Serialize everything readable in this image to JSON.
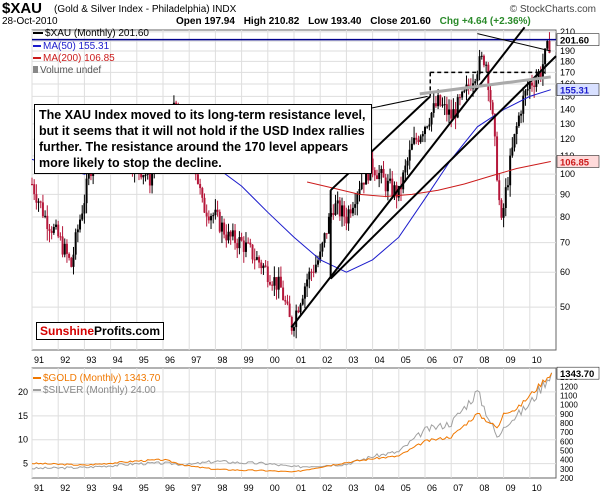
{
  "header": {
    "symbol": "$XAU",
    "subtitle": "(Gold & Silver Index - Philadelphia) INDX",
    "date": "28-Oct-2010",
    "open": "Open 197.94",
    "high": "High 210.82",
    "low": "Low 193.40",
    "close": "Close 201.60",
    "change": "Chg +4.64 (+2.36%)",
    "brand": "© StockCharts.com"
  },
  "legend_main": {
    "xau": "$XAU (Monthly) 201.60",
    "ma50": "MA(50) 155.31",
    "ma200": "MA(200) 106.85",
    "volume": "Volume undef"
  },
  "legend_lower": {
    "gold": "$GOLD (Monthly) 1343.70",
    "silver": "$SILVER (Monthly) 24.00"
  },
  "annotation": "The XAU Index moved to its long-term resistance level, but it seems that it will not hold if the USD Index rallies further. The resistance around the 170 level appears more likely to stop the decline.",
  "logo": {
    "part1": "Sunshine",
    "part2": "Profits.com"
  },
  "colors": {
    "ma50": "#1c1ccc",
    "ma200": "#cc1c1c",
    "candle_up": "#000000",
    "candle_down": "#b5173a",
    "gold": "#f07800",
    "silver": "#a0a0a0",
    "grid": "#dedede"
  },
  "chart_data": [
    {
      "type": "candlestick",
      "title": "$XAU (Gold & Silver Index - Philadelphia) INDX",
      "scale": "log",
      "x_ticks": [
        "91",
        "92",
        "93",
        "94",
        "95",
        "96",
        "97",
        "98",
        "99",
        "00",
        "01",
        "02",
        "03",
        "04",
        "05",
        "06",
        "07",
        "08",
        "09",
        "10"
      ],
      "y_ticks": [
        50,
        60,
        70,
        80,
        90,
        100,
        110,
        120,
        130,
        140,
        150,
        160,
        170,
        180,
        190,
        200,
        210
      ],
      "ylim": [
        40,
        212
      ],
      "last_close": 201.6,
      "ma50_last": 155.31,
      "ma200_last": 106.85,
      "series": [
        {
          "name": "$XAU (Monthly) 201.60",
          "x": [
            1991.0,
            1991.5,
            1992.0,
            1992.5,
            1993.0,
            1993.5,
            1994.0,
            1994.5,
            1995.0,
            1995.5,
            1996.0,
            1996.5,
            1997.0,
            1997.5,
            1998.0,
            1998.5,
            1999.0,
            1999.5,
            2000.0,
            2000.5,
            2000.9,
            2001.5,
            2002.0,
            2002.5,
            2003.0,
            2003.5,
            2004.0,
            2004.5,
            2005.0,
            2005.5,
            2006.0,
            2006.5,
            2007.0,
            2007.5,
            2008.0,
            2008.3,
            2008.7,
            2008.9,
            2009.3,
            2009.7,
            2010.0,
            2010.4,
            2010.8
          ],
          "values": [
            95,
            80,
            72,
            62,
            88,
            120,
            125,
            110,
            105,
            98,
            130,
            140,
            120,
            85,
            80,
            72,
            70,
            65,
            60,
            55,
            45,
            58,
            65,
            85,
            80,
            95,
            105,
            95,
            90,
            115,
            130,
            145,
            135,
            150,
            175,
            185,
            110,
            75,
            110,
            145,
            160,
            170,
            201.6
          ]
        },
        {
          "name": "MA(50) 155.31",
          "x": [
            1991.0,
            1993.0,
            1995.0,
            1997.0,
            1998.0,
            1999.0,
            2000.0,
            2001.0,
            2002.0,
            2003.0,
            2004.0,
            2005.0,
            2006.0,
            2007.0,
            2008.0,
            2009.0,
            2010.0,
            2010.8
          ],
          "values": [
            108,
            100,
            110,
            112,
            104,
            94,
            82,
            72,
            64,
            60,
            64,
            72,
            88,
            108,
            128,
            140,
            150,
            155.31
          ]
        },
        {
          "name": "MA(200) 106.85",
          "x": [
            2001.5,
            2002.5,
            2003.5,
            2004.5,
            2005.5,
            2006.5,
            2007.5,
            2008.5,
            2009.5,
            2010.8
          ],
          "values": [
            96,
            93,
            90,
            89,
            90,
            92,
            95,
            99,
            103,
            106.85
          ]
        }
      ]
    },
    {
      "type": "line",
      "x_ticks": [
        "91",
        "92",
        "93",
        "94",
        "95",
        "96",
        "97",
        "98",
        "99",
        "00",
        "01",
        "02",
        "03",
        "04",
        "05",
        "06",
        "07",
        "08",
        "09",
        "10"
      ],
      "y_ticks_left": [
        5,
        10,
        15,
        20
      ],
      "y_ticks_right": [
        200,
        300,
        400,
        500,
        600,
        700,
        800,
        900,
        1000,
        1100,
        1200,
        1300
      ],
      "ylim_left": [
        2,
        25
      ],
      "ylim_right": [
        200,
        1400
      ],
      "series": [
        {
          "name": "$GOLD (Monthly) 1343.70",
          "x": [
            1991,
            1993,
            1995,
            1996,
            1997,
            1998,
            1999,
            2000,
            2001,
            2002,
            2003,
            2004,
            2005,
            2006,
            2007,
            2008,
            2008.8,
            2009,
            2009.5,
            2010,
            2010.8
          ],
          "values": [
            360,
            340,
            385,
            400,
            330,
            295,
            285,
            280,
            265,
            320,
            370,
            410,
            440,
            600,
            650,
            900,
            740,
            920,
            950,
            1100,
            1343.7
          ]
        },
        {
          "name": "$SILVER (Monthly) 24.00",
          "x": [
            1991,
            1993,
            1995,
            1996,
            1997,
            1998,
            1999,
            2000,
            2001,
            2002,
            2003,
            2004,
            2005,
            2006,
            2007,
            2008,
            2008.8,
            2009,
            2009.5,
            2010,
            2010.8
          ],
          "values": [
            4.0,
            4.2,
            5.0,
            5.1,
            4.8,
            5.5,
            5.2,
            5.0,
            4.3,
            4.6,
            4.9,
            6.5,
            7.5,
            12,
            13.5,
            20,
            10,
            13,
            15,
            17.5,
            24.0
          ]
        }
      ]
    }
  ],
  "panel_labels": {
    "upper_price": "201.60",
    "upper_ma50": "155.31",
    "upper_ma200": "106.85",
    "lower_price": "1343.70"
  }
}
